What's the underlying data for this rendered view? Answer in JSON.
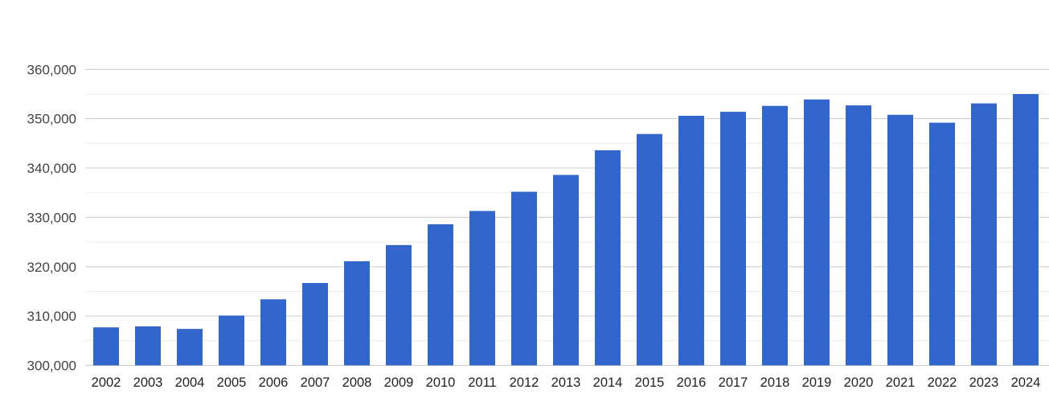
{
  "chart_data": {
    "type": "bar",
    "title": "",
    "xlabel": "",
    "ylabel": "",
    "legend": "none",
    "grid": "on",
    "categories": [
      "2002",
      "2003",
      "2004",
      "2005",
      "2006",
      "2007",
      "2008",
      "2009",
      "2010",
      "2011",
      "2012",
      "2013",
      "2014",
      "2015",
      "2016",
      "2017",
      "2018",
      "2019",
      "2020",
      "2021",
      "2022",
      "2023",
      "2024"
    ],
    "values": [
      307700,
      307900,
      307400,
      310100,
      313400,
      316700,
      321100,
      324400,
      328600,
      331300,
      335200,
      338600,
      343600,
      346900,
      350600,
      351400,
      352600,
      353900,
      352700,
      350800,
      349200,
      353100,
      355000
    ],
    "ylim": [
      300000,
      360000
    ],
    "y_major_step": 10000,
    "y_minor_step": 5000,
    "y_tick_values": [
      300000,
      310000,
      320000,
      330000,
      340000,
      350000,
      360000
    ],
    "y_tick_labels": [
      "300,000",
      "310,000",
      "320,000",
      "330,000",
      "340,000",
      "350,000",
      "360,000"
    ],
    "colors": {
      "bar": "#3366cc",
      "major_grid": "#cccccc",
      "minor_grid": "#ebebeb",
      "y_tick_text": "#444444",
      "x_tick_text": "#222222",
      "background": "#ffffff"
    }
  }
}
